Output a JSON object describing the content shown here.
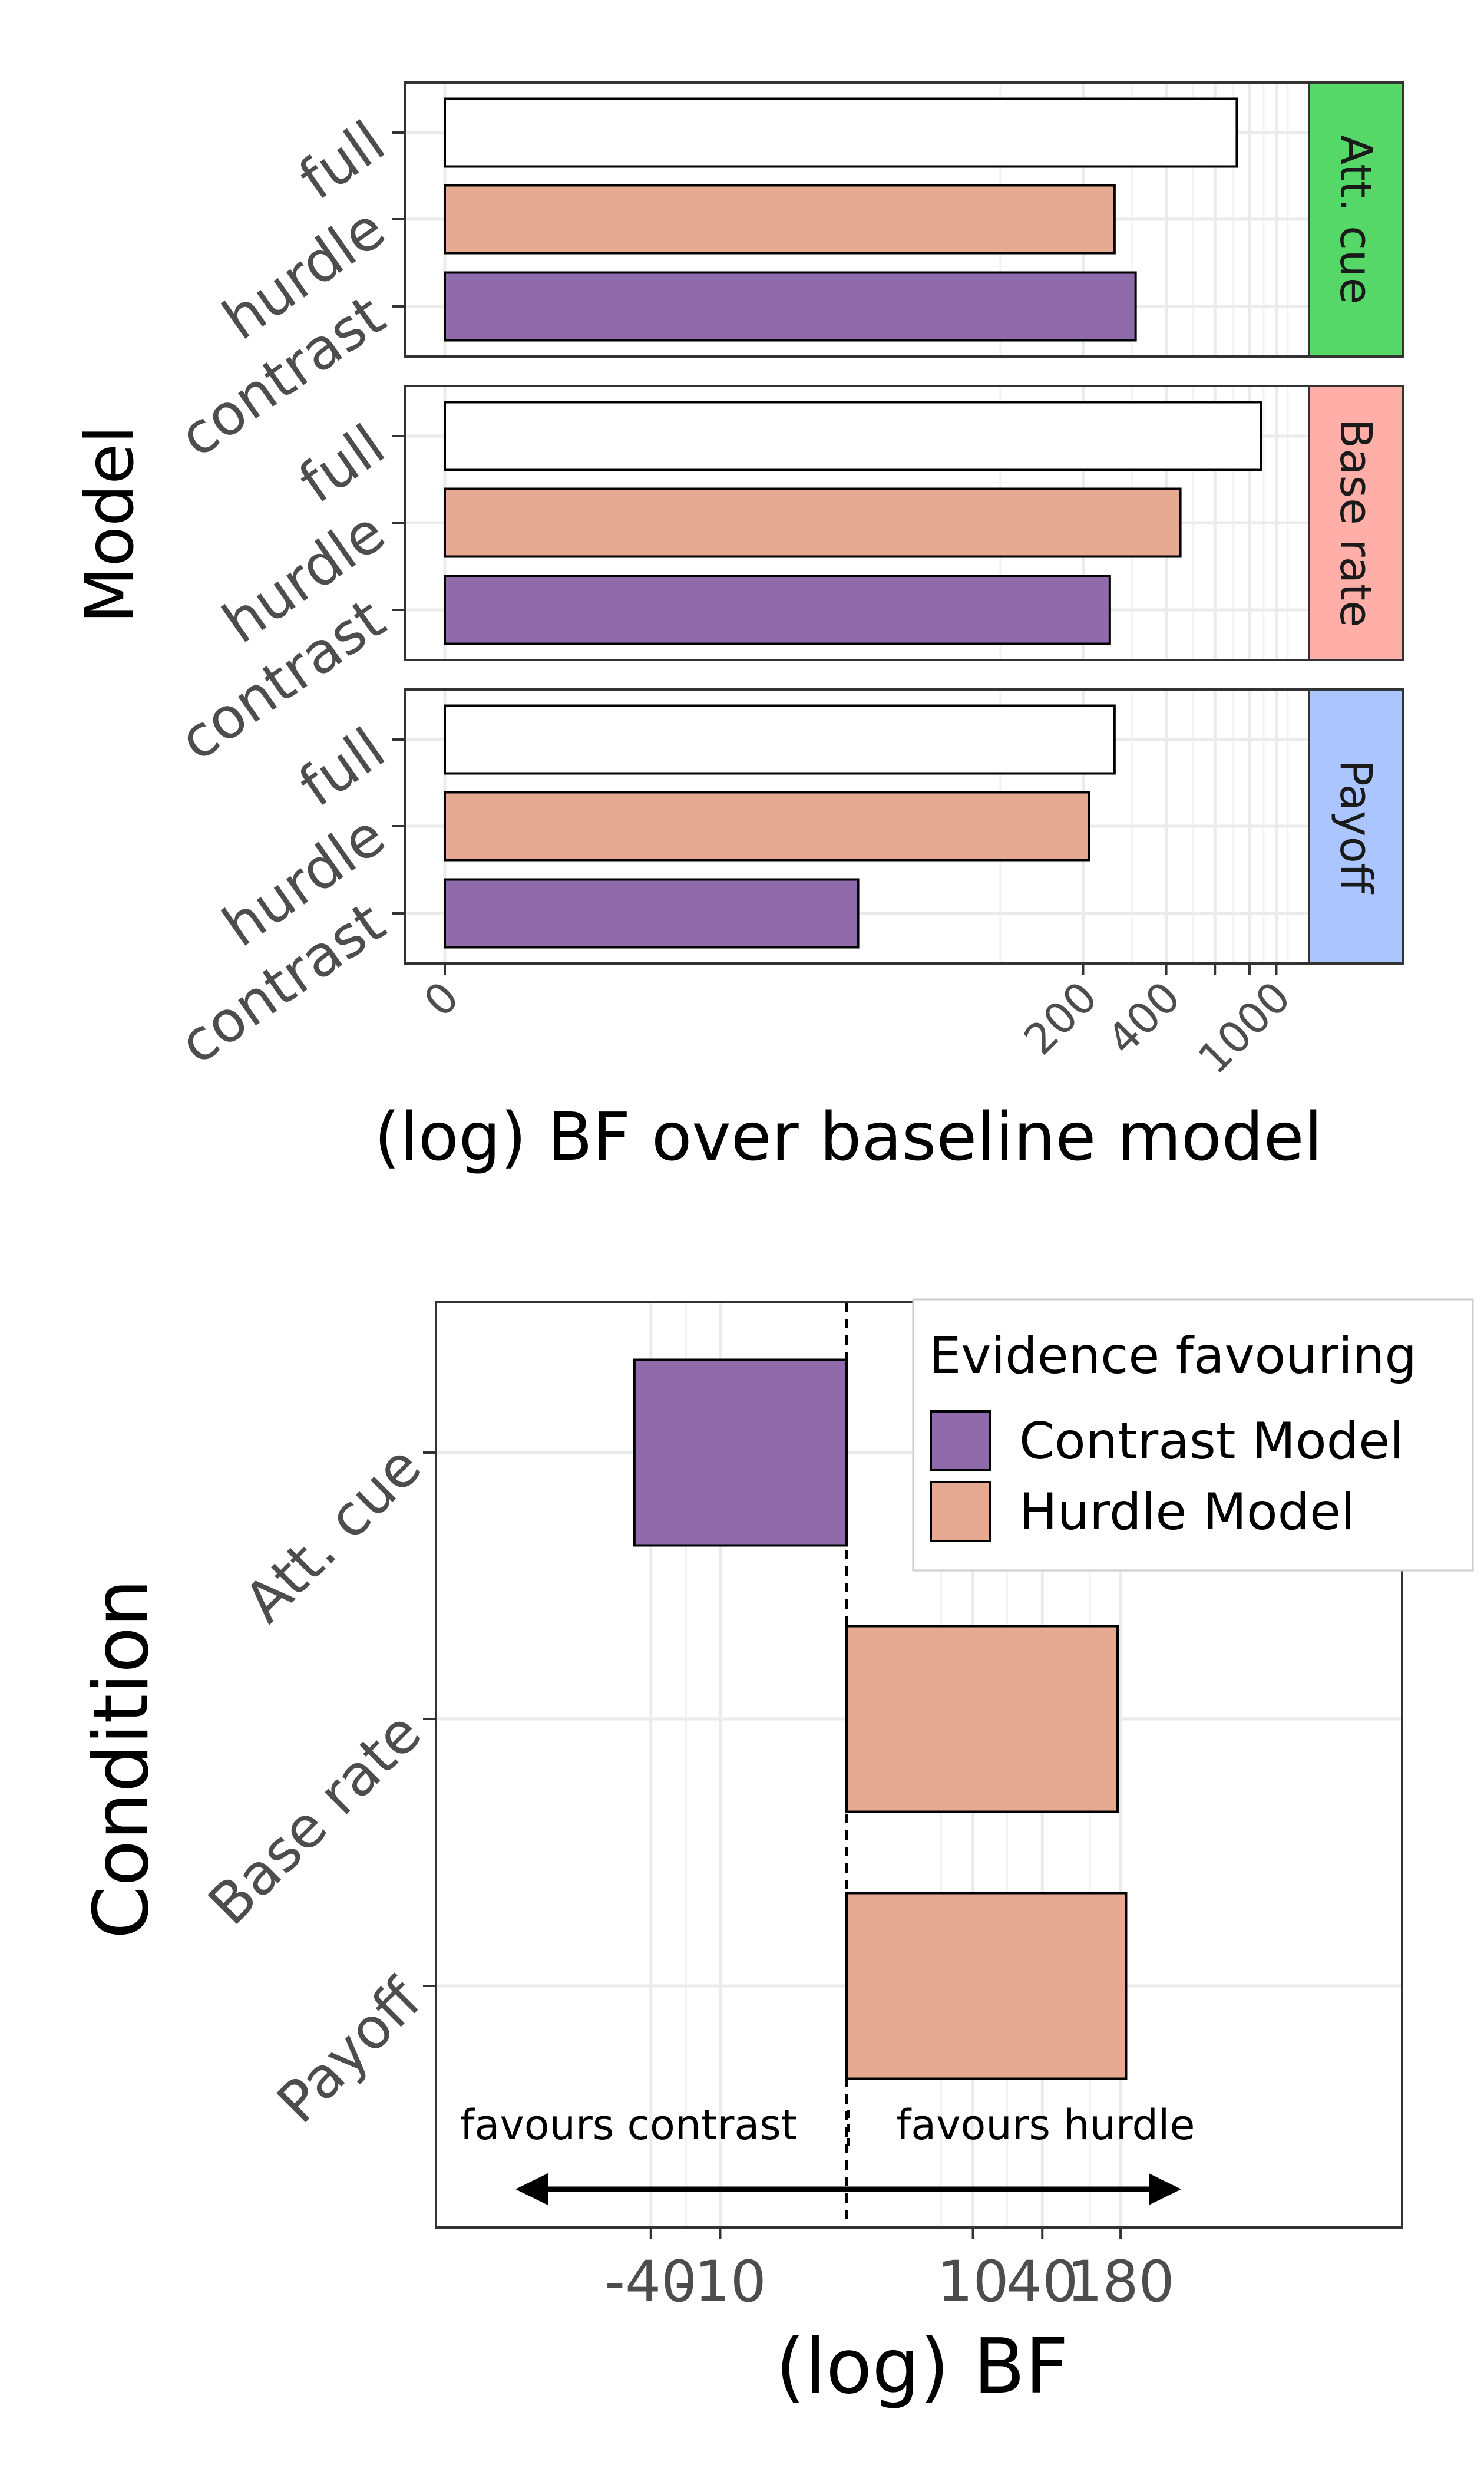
{
  "chart_data": [
    {
      "type": "bar",
      "orientation": "horizontal",
      "facet_strip_position": "right",
      "xlabel": "(log) BF over baseline model",
      "ylabel": "Model",
      "x_scale": "log",
      "x_tick_labels": [
        "0",
        "200",
        "400",
        "1000"
      ],
      "grid": true,
      "categories": [
        "full",
        "hurdle",
        "contrast"
      ],
      "category_colors": {
        "full": "#ffffff",
        "hurdle": "#e6aa92",
        "contrast": "#8f6bab"
      },
      "panels": [
        {
          "name": "Att. cue",
          "strip_color": "#56d868",
          "values": {
            "full": 720,
            "hurdle": 260,
            "contrast": 310
          }
        },
        {
          "name": "Base rate",
          "strip_color": "#ffaea8",
          "values": {
            "full": 880,
            "hurdle": 450,
            "contrast": 250
          }
        },
        {
          "name": "Payoff",
          "strip_color": "#abc5ff",
          "values": {
            "full": 260,
            "hurdle": 210,
            "contrast": 30
          }
        }
      ]
    },
    {
      "type": "bar",
      "orientation": "horizontal",
      "xlabel": "(log) BF",
      "ylabel": "Condition",
      "x_scale": "signed-log",
      "x_ticks": [
        -40,
        -10,
        10,
        40,
        180
      ],
      "x_tick_labels": [
        "-40",
        "-10",
        "10",
        "40",
        "180"
      ],
      "grid": true,
      "reference_line": 0,
      "categories": [
        "Att. cue",
        "Base rate",
        "Payoff"
      ],
      "values": [
        -55,
        170,
        200
      ],
      "fill_by": [
        "Contrast Model",
        "Hurdle Model",
        "Hurdle Model"
      ],
      "legend": {
        "title": "Evidence favouring",
        "placement": "top-right",
        "items": [
          {
            "label": "Contrast Model",
            "color": "#8f6bab"
          },
          {
            "label": "Hurdle Model",
            "color": "#e6aa92"
          }
        ]
      },
      "annotations": {
        "left": "favours contrast",
        "right": "favours hurdle"
      }
    }
  ]
}
